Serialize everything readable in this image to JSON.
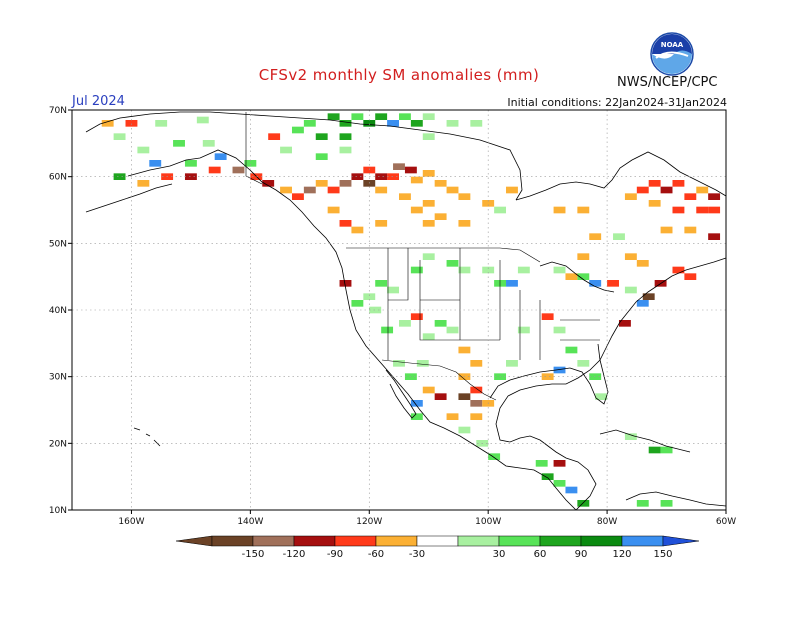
{
  "title": "CFSv2 monthly SM anomalies (mm)",
  "month_label": "Jul 2024",
  "agency": "NWS/NCEP/CPC",
  "init_conditions": "Initial conditions: 22Jan2024-31Jan2024",
  "logo_text": "NOAA",
  "colors": {
    "m150": "#6b4226",
    "m120": "#a0705a",
    "m90": "#a50f0f",
    "m60": "#ff3a1a",
    "m30": "#fbb034",
    "p30": "#a8f0a0",
    "p60": "#58e358",
    "p90": "#1ea51e",
    "p120": "#0a8a10",
    "p150": "#3a8ff0",
    "top": "#2050d8",
    "land": "#000000",
    "grid": "#9a9a9a"
  },
  "map": {
    "lon_range": [
      -170,
      -60
    ],
    "lat_range": [
      10,
      70
    ],
    "lat_ticks": [
      {
        "v": 70,
        "t": "70N"
      },
      {
        "v": 60,
        "t": "60N"
      },
      {
        "v": 50,
        "t": "50N"
      },
      {
        "v": 40,
        "t": "40N"
      },
      {
        "v": 30,
        "t": "30N"
      },
      {
        "v": 20,
        "t": "20N"
      },
      {
        "v": 10,
        "t": "10N"
      }
    ],
    "lon_ticks": [
      {
        "v": -160,
        "t": "160W"
      },
      {
        "v": -140,
        "t": "140W"
      },
      {
        "v": -120,
        "t": "120W"
      },
      {
        "v": -100,
        "t": "100W"
      },
      {
        "v": -80,
        "t": "80W"
      },
      {
        "v": -60,
        "t": "60W"
      }
    ]
  },
  "legend": {
    "labels": [
      "-150",
      "-120",
      "-90",
      "-60",
      "-30",
      "30",
      "60",
      "90",
      "120",
      "150"
    ]
  },
  "anomaly_cells": [
    {
      "lon": -112,
      "lat": 59.5,
      "c": "m30"
    },
    {
      "lon": -110,
      "lat": 60.5,
      "c": "m30"
    },
    {
      "lon": -108,
      "lat": 59,
      "c": "m30"
    },
    {
      "lon": -106,
      "lat": 58,
      "c": "m30"
    },
    {
      "lon": -104,
      "lat": 57,
      "c": "m30"
    },
    {
      "lon": -110,
      "lat": 56,
      "c": "m30"
    },
    {
      "lon": -112,
      "lat": 55,
      "c": "m30"
    },
    {
      "lon": -114,
      "lat": 57,
      "c": "m30"
    },
    {
      "lon": -118,
      "lat": 58,
      "c": "m30"
    },
    {
      "lon": -116,
      "lat": 60,
      "c": "m60"
    },
    {
      "lon": -118,
      "lat": 60,
      "c": "m90"
    },
    {
      "lon": -120,
      "lat": 61,
      "c": "m60"
    },
    {
      "lon": -122,
      "lat": 60,
      "c": "m90"
    },
    {
      "lon": -124,
      "lat": 59,
      "c": "m120"
    },
    {
      "lon": -120,
      "lat": 59,
      "c": "m150"
    },
    {
      "lon": -115,
      "lat": 61.5,
      "c": "m120"
    },
    {
      "lon": -113,
      "lat": 61,
      "c": "m90"
    },
    {
      "lon": -126,
      "lat": 58,
      "c": "m60"
    },
    {
      "lon": -128,
      "lat": 59,
      "c": "m30"
    },
    {
      "lon": -130,
      "lat": 58,
      "c": "m120"
    },
    {
      "lon": -132,
      "lat": 57,
      "c": "m60"
    },
    {
      "lon": -134,
      "lat": 58,
      "c": "m30"
    },
    {
      "lon": -137,
      "lat": 59,
      "c": "m90"
    },
    {
      "lon": -139,
      "lat": 60,
      "c": "m60"
    },
    {
      "lon": -142,
      "lat": 61,
      "c": "m120"
    },
    {
      "lon": -146,
      "lat": 61,
      "c": "m60"
    },
    {
      "lon": -150,
      "lat": 60,
      "c": "m90"
    },
    {
      "lon": -154,
      "lat": 60,
      "c": "m60"
    },
    {
      "lon": -158,
      "lat": 59,
      "c": "m30"
    },
    {
      "lon": -162,
      "lat": 60,
      "c": "p90"
    },
    {
      "lon": -156,
      "lat": 62,
      "c": "p150"
    },
    {
      "lon": -150,
      "lat": 62,
      "c": "p60"
    },
    {
      "lon": -145,
      "lat": 63,
      "c": "p150"
    },
    {
      "lon": -140,
      "lat": 62,
      "c": "p60"
    },
    {
      "lon": -147,
      "lat": 65,
      "c": "p30"
    },
    {
      "lon": -152,
      "lat": 65,
      "c": "p60"
    },
    {
      "lon": -158,
      "lat": 64,
      "c": "p30"
    },
    {
      "lon": -162,
      "lat": 66,
      "c": "p30"
    },
    {
      "lon": -160,
      "lat": 68,
      "c": "m60"
    },
    {
      "lon": -164,
      "lat": 68,
      "c": "m30"
    },
    {
      "lon": -155,
      "lat": 68,
      "c": "p30"
    },
    {
      "lon": -148,
      "lat": 68.5,
      "c": "p30"
    },
    {
      "lon": -130,
      "lat": 68,
      "c": "p60"
    },
    {
      "lon": -126,
      "lat": 69,
      "c": "p90"
    },
    {
      "lon": -124,
      "lat": 68,
      "c": "p90"
    },
    {
      "lon": -122,
      "lat": 69,
      "c": "p60"
    },
    {
      "lon": -120,
      "lat": 68,
      "c": "p120"
    },
    {
      "lon": -118,
      "lat": 69,
      "c": "p90"
    },
    {
      "lon": -116,
      "lat": 68,
      "c": "p150"
    },
    {
      "lon": -114,
      "lat": 69,
      "c": "p60"
    },
    {
      "lon": -112,
      "lat": 68,
      "c": "p90"
    },
    {
      "lon": -110,
      "lat": 69,
      "c": "p30"
    },
    {
      "lon": -106,
      "lat": 68,
      "c": "p30"
    },
    {
      "lon": -102,
      "lat": 68,
      "c": "p30"
    },
    {
      "lon": -128,
      "lat": 66,
      "c": "p90"
    },
    {
      "lon": -132,
      "lat": 67,
      "c": "p60"
    },
    {
      "lon": -136,
      "lat": 66,
      "c": "m60"
    },
    {
      "lon": -134,
      "lat": 64,
      "c": "p30"
    },
    {
      "lon": -128,
      "lat": 63,
      "c": "p60"
    },
    {
      "lon": -124,
      "lat": 64,
      "c": "p30"
    },
    {
      "lon": -124,
      "lat": 66,
      "c": "p90"
    },
    {
      "lon": -110,
      "lat": 66,
      "c": "p30"
    },
    {
      "lon": -126,
      "lat": 55,
      "c": "m30"
    },
    {
      "lon": -124,
      "lat": 53,
      "c": "m60"
    },
    {
      "lon": -122,
      "lat": 52,
      "c": "m30"
    },
    {
      "lon": -118,
      "lat": 53,
      "c": "m30"
    },
    {
      "lon": -110,
      "lat": 53,
      "c": "m30"
    },
    {
      "lon": -108,
      "lat": 54,
      "c": "m30"
    },
    {
      "lon": -104,
      "lat": 53,
      "c": "m30"
    },
    {
      "lon": -100,
      "lat": 56,
      "c": "m30"
    },
    {
      "lon": -96,
      "lat": 58,
      "c": "m30"
    },
    {
      "lon": -98,
      "lat": 55,
      "c": "p30"
    },
    {
      "lon": -88,
      "lat": 55,
      "c": "m30"
    },
    {
      "lon": -84,
      "lat": 55,
      "c": "m30"
    },
    {
      "lon": -82,
      "lat": 51,
      "c": "m30"
    },
    {
      "lon": -78,
      "lat": 51,
      "c": "p30"
    },
    {
      "lon": -84,
      "lat": 48,
      "c": "m30"
    },
    {
      "lon": -76,
      "lat": 48,
      "c": "m30"
    },
    {
      "lon": -74,
      "lat": 58,
      "c": "m60"
    },
    {
      "lon": -72,
      "lat": 59,
      "c": "m60"
    },
    {
      "lon": -70,
      "lat": 58,
      "c": "m90"
    },
    {
      "lon": -68,
      "lat": 59,
      "c": "m60"
    },
    {
      "lon": -66,
      "lat": 57,
      "c": "m60"
    },
    {
      "lon": -64,
      "lat": 58,
      "c": "m30"
    },
    {
      "lon": -62,
      "lat": 57,
      "c": "m90"
    },
    {
      "lon": -72,
      "lat": 56,
      "c": "m30"
    },
    {
      "lon": -68,
      "lat": 55,
      "c": "m60"
    },
    {
      "lon": -64,
      "lat": 55,
      "c": "m60"
    },
    {
      "lon": -62,
      "lat": 55,
      "c": "m60"
    },
    {
      "lon": -76,
      "lat": 57,
      "c": "m30"
    },
    {
      "lon": -70,
      "lat": 52,
      "c": "m30"
    },
    {
      "lon": -62,
      "lat": 51,
      "c": "m90"
    },
    {
      "lon": -66,
      "lat": 52,
      "c": "m30"
    },
    {
      "lon": -74,
      "lat": 47,
      "c": "m30"
    },
    {
      "lon": -68,
      "lat": 46,
      "c": "m60"
    },
    {
      "lon": -71,
      "lat": 44,
      "c": "m90"
    },
    {
      "lon": -66,
      "lat": 45,
      "c": "m60"
    },
    {
      "lon": -73,
      "lat": 42,
      "c": "m150"
    },
    {
      "lon": -76,
      "lat": 43,
      "c": "p30"
    },
    {
      "lon": -74,
      "lat": 41,
      "c": "p150"
    },
    {
      "lon": -77,
      "lat": 38,
      "c": "m90"
    },
    {
      "lon": -79,
      "lat": 44,
      "c": "m60"
    },
    {
      "lon": -82,
      "lat": 44,
      "c": "p150"
    },
    {
      "lon": -84,
      "lat": 45,
      "c": "p60"
    },
    {
      "lon": -86,
      "lat": 45,
      "c": "m30"
    },
    {
      "lon": -88,
      "lat": 46,
      "c": "p30"
    },
    {
      "lon": -94,
      "lat": 46,
      "c": "p30"
    },
    {
      "lon": -96,
      "lat": 44,
      "c": "p150"
    },
    {
      "lon": -98,
      "lat": 44,
      "c": "p60"
    },
    {
      "lon": -100,
      "lat": 46,
      "c": "p30"
    },
    {
      "lon": -104,
      "lat": 46,
      "c": "p30"
    },
    {
      "lon": -106,
      "lat": 47,
      "c": "p60"
    },
    {
      "lon": -110,
      "lat": 48,
      "c": "p30"
    },
    {
      "lon": -112,
      "lat": 46,
      "c": "p60"
    },
    {
      "lon": -116,
      "lat": 43,
      "c": "p30"
    },
    {
      "lon": -118,
      "lat": 44,
      "c": "p60"
    },
    {
      "lon": -120,
      "lat": 42,
      "c": "p30"
    },
    {
      "lon": -122,
      "lat": 41,
      "c": "p60"
    },
    {
      "lon": -124,
      "lat": 44,
      "c": "m90"
    },
    {
      "lon": -119,
      "lat": 40,
      "c": "p30"
    },
    {
      "lon": -117,
      "lat": 37,
      "c": "p60"
    },
    {
      "lon": -114,
      "lat": 38,
      "c": "p30"
    },
    {
      "lon": -112,
      "lat": 39,
      "c": "m60"
    },
    {
      "lon": -110,
      "lat": 36,
      "c": "p30"
    },
    {
      "lon": -108,
      "lat": 38,
      "c": "p60"
    },
    {
      "lon": -106,
      "lat": 37,
      "c": "p30"
    },
    {
      "lon": -104,
      "lat": 34,
      "c": "m30"
    },
    {
      "lon": -102,
      "lat": 32,
      "c": "m30"
    },
    {
      "lon": -104,
      "lat": 30,
      "c": "m30"
    },
    {
      "lon": -102,
      "lat": 28,
      "c": "m60"
    },
    {
      "lon": -104,
      "lat": 27,
      "c": "m150"
    },
    {
      "lon": -102,
      "lat": 26,
      "c": "m120"
    },
    {
      "lon": -100,
      "lat": 26,
      "c": "m30"
    },
    {
      "lon": -102,
      "lat": 24,
      "c": "m30"
    },
    {
      "lon": -104,
      "lat": 22,
      "c": "p30"
    },
    {
      "lon": -106,
      "lat": 24,
      "c": "m30"
    },
    {
      "lon": -108,
      "lat": 27,
      "c": "m90"
    },
    {
      "lon": -110,
      "lat": 28,
      "c": "m30"
    },
    {
      "lon": -98,
      "lat": 30,
      "c": "p60"
    },
    {
      "lon": -96,
      "lat": 32,
      "c": "p30"
    },
    {
      "lon": -94,
      "lat": 37,
      "c": "p30"
    },
    {
      "lon": -90,
      "lat": 39,
      "c": "m60"
    },
    {
      "lon": -88,
      "lat": 37,
      "c": "p30"
    },
    {
      "lon": -86,
      "lat": 34,
      "c": "p60"
    },
    {
      "lon": -84,
      "lat": 32,
      "c": "p30"
    },
    {
      "lon": -82,
      "lat": 30,
      "c": "p60"
    },
    {
      "lon": -81,
      "lat": 27,
      "c": "p30"
    },
    {
      "lon": -88,
      "lat": 31,
      "c": "p150"
    },
    {
      "lon": -90,
      "lat": 30,
      "c": "m30"
    },
    {
      "lon": -111,
      "lat": 32,
      "c": "p30"
    },
    {
      "lon": -113,
      "lat": 30,
      "c": "p60"
    },
    {
      "lon": -115,
      "lat": 32,
      "c": "p30"
    },
    {
      "lon": -112,
      "lat": 24,
      "c": "p60"
    },
    {
      "lon": -112,
      "lat": 26,
      "c": "p150"
    },
    {
      "lon": -101,
      "lat": 20,
      "c": "p30"
    },
    {
      "lon": -99,
      "lat": 18,
      "c": "p60"
    },
    {
      "lon": -91,
      "lat": 17,
      "c": "p60"
    },
    {
      "lon": -90,
      "lat": 15,
      "c": "p90"
    },
    {
      "lon": -88,
      "lat": 14,
      "c": "p60"
    },
    {
      "lon": -86,
      "lat": 13,
      "c": "p150"
    },
    {
      "lon": -84,
      "lat": 11,
      "c": "p90"
    },
    {
      "lon": -88,
      "lat": 17,
      "c": "m90"
    },
    {
      "lon": -72,
      "lat": 19,
      "c": "p90"
    },
    {
      "lon": -70,
      "lat": 19,
      "c": "p60"
    },
    {
      "lon": -76,
      "lat": 21,
      "c": "p30"
    },
    {
      "lon": -74,
      "lat": 11,
      "c": "p60"
    },
    {
      "lon": -70,
      "lat": 11,
      "c": "p60"
    }
  ]
}
